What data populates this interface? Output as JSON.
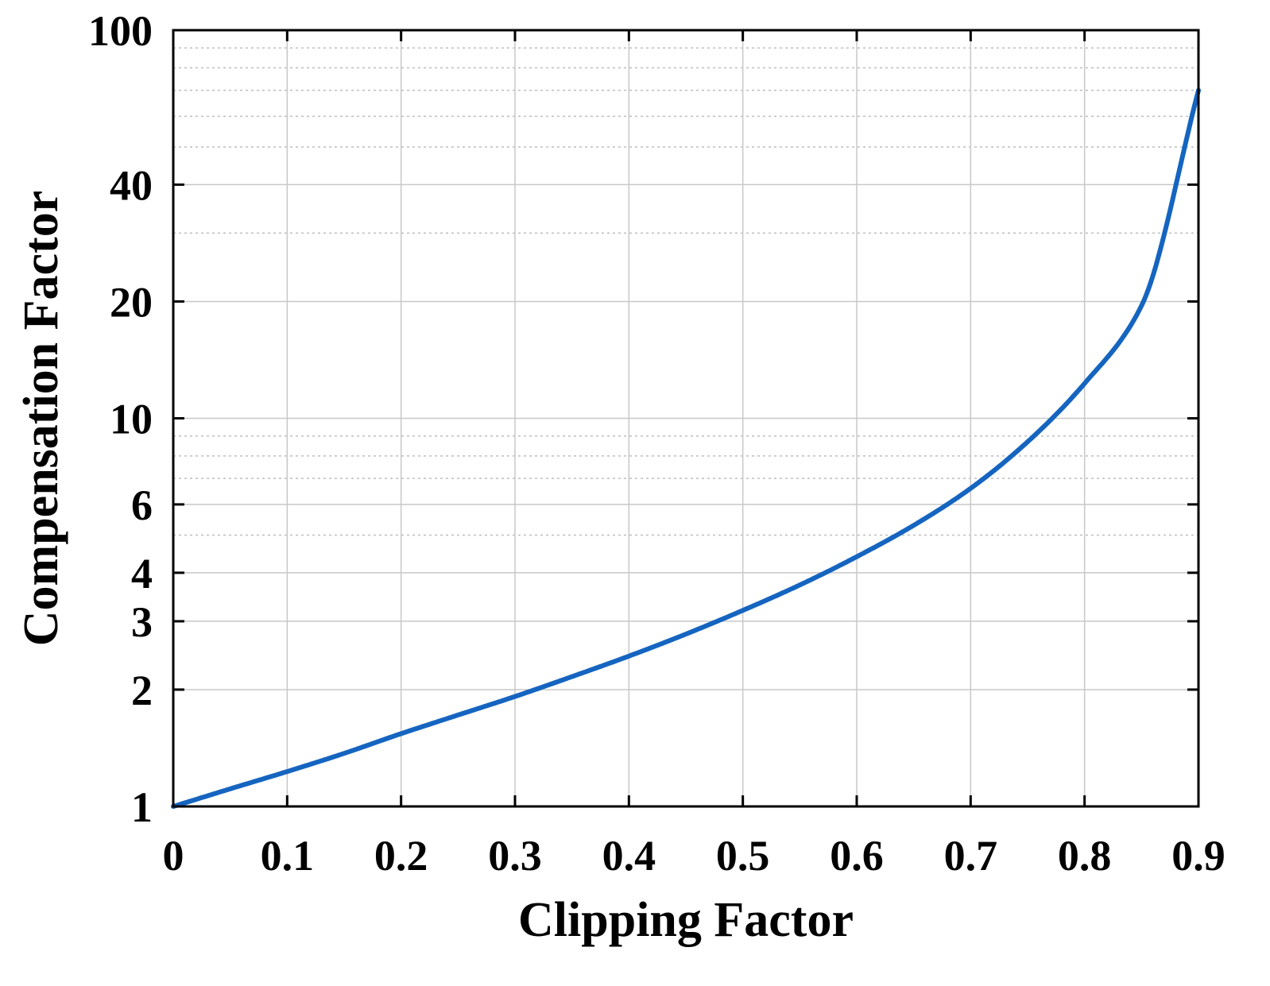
{
  "chart_data": {
    "type": "line",
    "title": "",
    "xlabel": "Clipping Factor",
    "ylabel": "Compensation Factor",
    "x_scale": "linear",
    "y_scale": "log",
    "xlim": [
      0,
      0.9
    ],
    "ylim": [
      1,
      100
    ],
    "grid": true,
    "x_ticks": [
      0,
      0.1,
      0.2,
      0.3,
      0.4,
      0.5,
      0.6,
      0.7,
      0.8,
      0.9
    ],
    "x_tick_labels": [
      "0",
      "0.1",
      "0.2",
      "0.3",
      "0.4",
      "0.5",
      "0.6",
      "0.7",
      "0.8",
      "0.9"
    ],
    "y_ticks": [
      1,
      2,
      3,
      4,
      6,
      10,
      20,
      40,
      100
    ],
    "y_tick_labels": [
      "1",
      "2",
      "3",
      "4",
      "6",
      "10",
      "20",
      "40",
      "100"
    ],
    "y_minor_grid": [
      5,
      7,
      8,
      9,
      30,
      50,
      60,
      70,
      80,
      90
    ],
    "series": [
      {
        "color": "#1565c0",
        "x": [
          0,
          0.05,
          0.1,
          0.15,
          0.2,
          0.25,
          0.3,
          0.35,
          0.4,
          0.45,
          0.5,
          0.55,
          0.6,
          0.65,
          0.7,
          0.75,
          0.8,
          0.85,
          0.9
        ],
        "y": [
          1.0,
          1.11,
          1.23,
          1.37,
          1.54,
          1.72,
          1.92,
          2.16,
          2.44,
          2.78,
          3.2,
          3.72,
          4.4,
          5.3,
          6.6,
          8.7,
          12.3,
          19.5,
          70.0
        ]
      }
    ]
  }
}
